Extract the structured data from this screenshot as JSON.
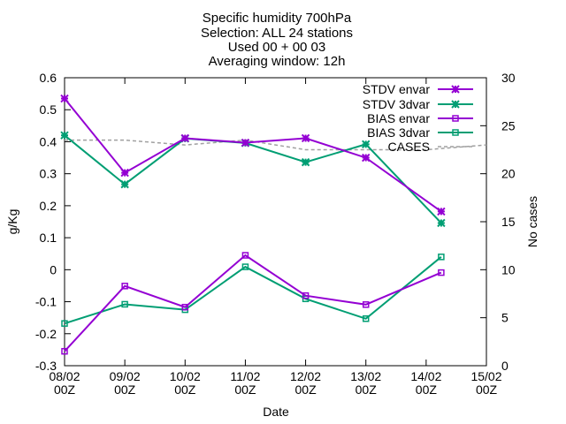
{
  "chart_data": {
    "type": "line",
    "title_lines": [
      "Specific humidity 700hPa",
      "Selection: ALL      24 stations",
      "Used 00 + 00 03",
      "Averaging window: 12h"
    ],
    "xlabel": "Date",
    "ylabel": "g/Kg",
    "y2label": "No cases",
    "x_ticks": [
      {
        "top": "08/02",
        "bottom": "00Z"
      },
      {
        "top": "09/02",
        "bottom": "00Z"
      },
      {
        "top": "10/02",
        "bottom": "00Z"
      },
      {
        "top": "11/02",
        "bottom": "00Z"
      },
      {
        "top": "12/02",
        "bottom": "00Z"
      },
      {
        "top": "13/02",
        "bottom": "00Z"
      },
      {
        "top": "14/02",
        "bottom": "00Z"
      },
      {
        "top": "15/02",
        "bottom": "00Z"
      }
    ],
    "xlim": [
      0,
      7
    ],
    "ylim": [
      -0.3,
      0.6
    ],
    "y_ticks": [
      0.6,
      0.5,
      0.4,
      0.3,
      0.2,
      0.1,
      0,
      -0.1,
      -0.2,
      -0.3
    ],
    "y_tick_labels": [
      "0.6",
      "0.5",
      "0.4",
      "0.3",
      "0.2",
      "0.1",
      "0",
      "-0.1",
      "-0.2",
      "-0.3"
    ],
    "y2lim": [
      0,
      30
    ],
    "y2_ticks": [
      30,
      25,
      20,
      15,
      10,
      5,
      0
    ],
    "y2_tick_labels": [
      "30",
      "25",
      "20",
      "15",
      "10",
      "5",
      "0"
    ],
    "grid": false,
    "legend_position": "top-right",
    "colors": {
      "envar": "#9400d3",
      "3dvar": "#009e73",
      "cases": "#a0a0a0"
    },
    "series": [
      {
        "name": "STDV envar",
        "color": "#9400d3",
        "marker": "star",
        "axis": "y",
        "x": [
          0,
          1,
          2,
          3,
          4,
          5,
          6.25
        ],
        "values": [
          0.535,
          0.303,
          0.411,
          0.397,
          0.411,
          0.35,
          0.182
        ]
      },
      {
        "name": "STDV 3dvar",
        "color": "#009e73",
        "marker": "star",
        "axis": "y",
        "x": [
          0,
          1,
          2,
          3,
          4,
          5,
          6.25
        ],
        "values": [
          0.42,
          0.267,
          0.41,
          0.396,
          0.336,
          0.392,
          0.146
        ]
      },
      {
        "name": "BIAS envar",
        "color": "#9400d3",
        "marker": "square",
        "axis": "y",
        "x": [
          0,
          1,
          2,
          3,
          4,
          5,
          6.25
        ],
        "values": [
          -0.255,
          -0.051,
          -0.117,
          0.045,
          -0.081,
          -0.109,
          -0.009
        ]
      },
      {
        "name": "BIAS 3dvar",
        "color": "#009e73",
        "marker": "square",
        "axis": "y",
        "x": [
          0,
          1,
          2,
          3,
          4,
          5,
          6.25
        ],
        "values": [
          -0.168,
          -0.108,
          -0.125,
          0.009,
          -0.091,
          -0.153,
          0.04
        ]
      },
      {
        "name": "CASES",
        "color": "#a0a0a0",
        "marker": "none",
        "dashed": true,
        "axis": "y2",
        "x": [
          0,
          1,
          2,
          3,
          4,
          5,
          6,
          7
        ],
        "values": [
          23.5,
          23.5,
          23,
          23.5,
          22.5,
          22.5,
          22.5,
          23
        ]
      }
    ]
  }
}
